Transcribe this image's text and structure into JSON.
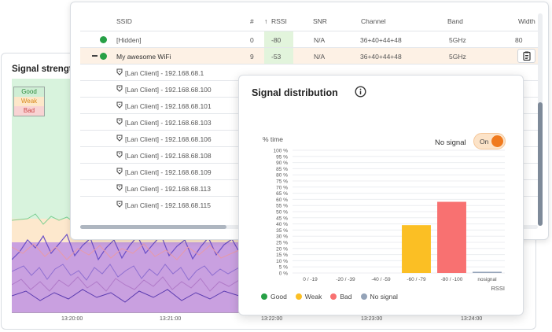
{
  "strength_panel": {
    "title": "Signal strengt",
    "legend": {
      "good": "Good",
      "weak": "Weak",
      "bad": "Bad"
    },
    "time_labels": [
      "13:20:00",
      "13:21:00",
      "13:22:00",
      "13:23:00",
      "13:24:00"
    ]
  },
  "table": {
    "headers": {
      "ssid": "SSID",
      "num": "#",
      "rssi_sort": "↑",
      "rssi": "RSSI",
      "snr": "SNR",
      "channel": "Channel",
      "band": "Band",
      "width": "Width"
    },
    "networks": [
      {
        "ssid": "[Hidden]",
        "num": "0",
        "rssi": "-80",
        "snr": "N/A",
        "channel": "36+40+44+48",
        "band": "5GHz",
        "width": "80"
      },
      {
        "ssid": "My awesome WiFi",
        "num": "9",
        "rssi": "-53",
        "snr": "N/A",
        "channel": "36+40+44+48",
        "band": "5GHz",
        "expand": "–"
      }
    ],
    "clients": [
      "[Lan Client] - 192.168.68.1",
      "[Lan Client] - 192.168.68.100",
      "[Lan Client] - 192.168.68.101",
      "[Lan Client] - 192.168.68.103",
      "[Lan Client] - 192.168.68.106",
      "[Lan Client] - 192.168.68.108",
      "[Lan Client] - 192.168.68.109",
      "[Lan Client] - 192.168.68.113",
      "[Lan Client] - 192.168.68.115"
    ]
  },
  "distribution": {
    "title": "Signal distribution",
    "toggle_label": "No signal",
    "toggle_value": "On",
    "legend": {
      "good": "Good",
      "weak": "Weak",
      "bad": "Bad",
      "nosignal": "No signal"
    }
  },
  "colors": {
    "good": "#27a046",
    "weak": "#fbbf24",
    "bad": "#f87171",
    "nosignal": "#94a3b8",
    "accent": "#f07a1e"
  },
  "chart_data": {
    "type": "bar",
    "title": "Signal distribution",
    "ylabel": "% time",
    "xlabel": "RSSI",
    "ylim": [
      0,
      100
    ],
    "yticks": [
      "0 %",
      "5 %",
      "10 %",
      "15 %",
      "20 %",
      "25 %",
      "30 %",
      "35 %",
      "40 %",
      "45 %",
      "50 %",
      "55 %",
      "60 %",
      "65 %",
      "70 %",
      "75 %",
      "80 %",
      "85 %",
      "90 %",
      "95 %",
      "100 %"
    ],
    "categories": [
      "0 / -19",
      "-20 / -39",
      "-40 / -59",
      "-60 / -79",
      "-80 / -100",
      "nosignal"
    ],
    "values": [
      0,
      0,
      0,
      39,
      58,
      1
    ],
    "bar_colors": [
      "#27a046",
      "#27a046",
      "#27a046",
      "#fbbf24",
      "#f87171",
      "#94a3b8"
    ],
    "grid": true
  }
}
